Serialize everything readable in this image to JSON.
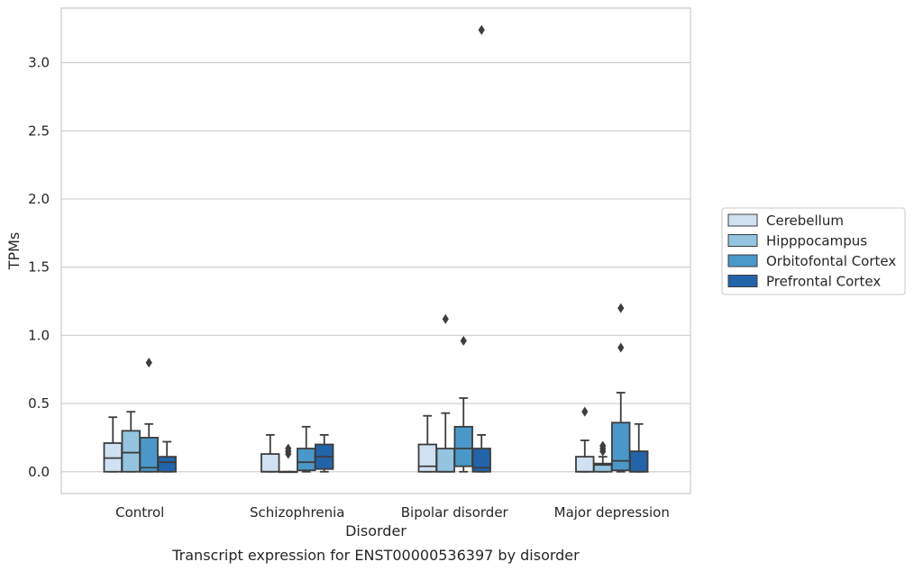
{
  "caption": "Transcript expression for ENST00000536397 by disorder",
  "chart_data": {
    "type": "box",
    "xlabel": "Disorder",
    "ylabel": "TPMs",
    "ylim": [
      -0.16,
      3.4
    ],
    "yticks": [
      "0.0",
      "0.5",
      "1.0",
      "1.5",
      "2.0",
      "2.5",
      "3.0"
    ],
    "grid": "horizontal",
    "legend_position": "right",
    "categories": [
      "Control",
      "Schizophrenia",
      "Bipolar disorder",
      "Major depression"
    ],
    "series": [
      {
        "name": "Cerebellum",
        "color": "#d0e1f2",
        "boxes": [
          {
            "min": 0.0,
            "q1": 0.0,
            "median": 0.1,
            "q3": 0.21,
            "max": 0.4,
            "outliers": []
          },
          {
            "min": 0.0,
            "q1": 0.0,
            "median": 0.0,
            "q3": 0.13,
            "max": 0.27,
            "outliers": []
          },
          {
            "min": 0.0,
            "q1": 0.0,
            "median": 0.04,
            "q3": 0.2,
            "max": 0.41,
            "outliers": []
          },
          {
            "min": 0.0,
            "q1": 0.0,
            "median": 0.0,
            "q3": 0.11,
            "max": 0.23,
            "outliers": [
              0.44
            ]
          }
        ]
      },
      {
        "name": "Hipppocampus",
        "color": "#94c4df",
        "boxes": [
          {
            "min": 0.0,
            "q1": 0.0,
            "median": 0.14,
            "q3": 0.3,
            "max": 0.44,
            "outliers": []
          },
          {
            "min": 0.0,
            "q1": 0.0,
            "median": 0.0,
            "q3": 0.0,
            "max": 0.0,
            "outliers": [
              0.13,
              0.15,
              0.17
            ]
          },
          {
            "min": 0.0,
            "q1": 0.0,
            "median": 0.0,
            "q3": 0.17,
            "max": 0.43,
            "outliers": [
              1.12
            ]
          },
          {
            "min": 0.0,
            "q1": 0.0,
            "median": 0.05,
            "q3": 0.06,
            "max": 0.11,
            "outliers": [
              0.15,
              0.17,
              0.19
            ]
          }
        ]
      },
      {
        "name": "Orbitofontal Cortex",
        "color": "#4a98c9",
        "boxes": [
          {
            "min": 0.0,
            "q1": 0.0,
            "median": 0.03,
            "q3": 0.25,
            "max": 0.35,
            "outliers": [
              0.8
            ]
          },
          {
            "min": 0.0,
            "q1": 0.01,
            "median": 0.07,
            "q3": 0.17,
            "max": 0.33,
            "outliers": []
          },
          {
            "min": 0.0,
            "q1": 0.04,
            "median": 0.17,
            "q3": 0.33,
            "max": 0.54,
            "outliers": [
              0.96
            ]
          },
          {
            "min": 0.0,
            "q1": 0.01,
            "median": 0.08,
            "q3": 0.36,
            "max": 0.58,
            "outliers": [
              0.91,
              1.2
            ]
          }
        ]
      },
      {
        "name": "Prefrontal Cortex",
        "color": "#2264a9",
        "boxes": [
          {
            "min": 0.0,
            "q1": 0.0,
            "median": 0.07,
            "q3": 0.11,
            "max": 0.22,
            "outliers": []
          },
          {
            "min": 0.0,
            "q1": 0.02,
            "median": 0.11,
            "q3": 0.2,
            "max": 0.27,
            "outliers": []
          },
          {
            "min": 0.0,
            "q1": 0.0,
            "median": 0.03,
            "q3": 0.17,
            "max": 0.27,
            "outliers": [
              3.24
            ]
          },
          {
            "min": 0.0,
            "q1": 0.0,
            "median": 0.0,
            "q3": 0.15,
            "max": 0.35,
            "outliers": []
          }
        ]
      }
    ]
  }
}
